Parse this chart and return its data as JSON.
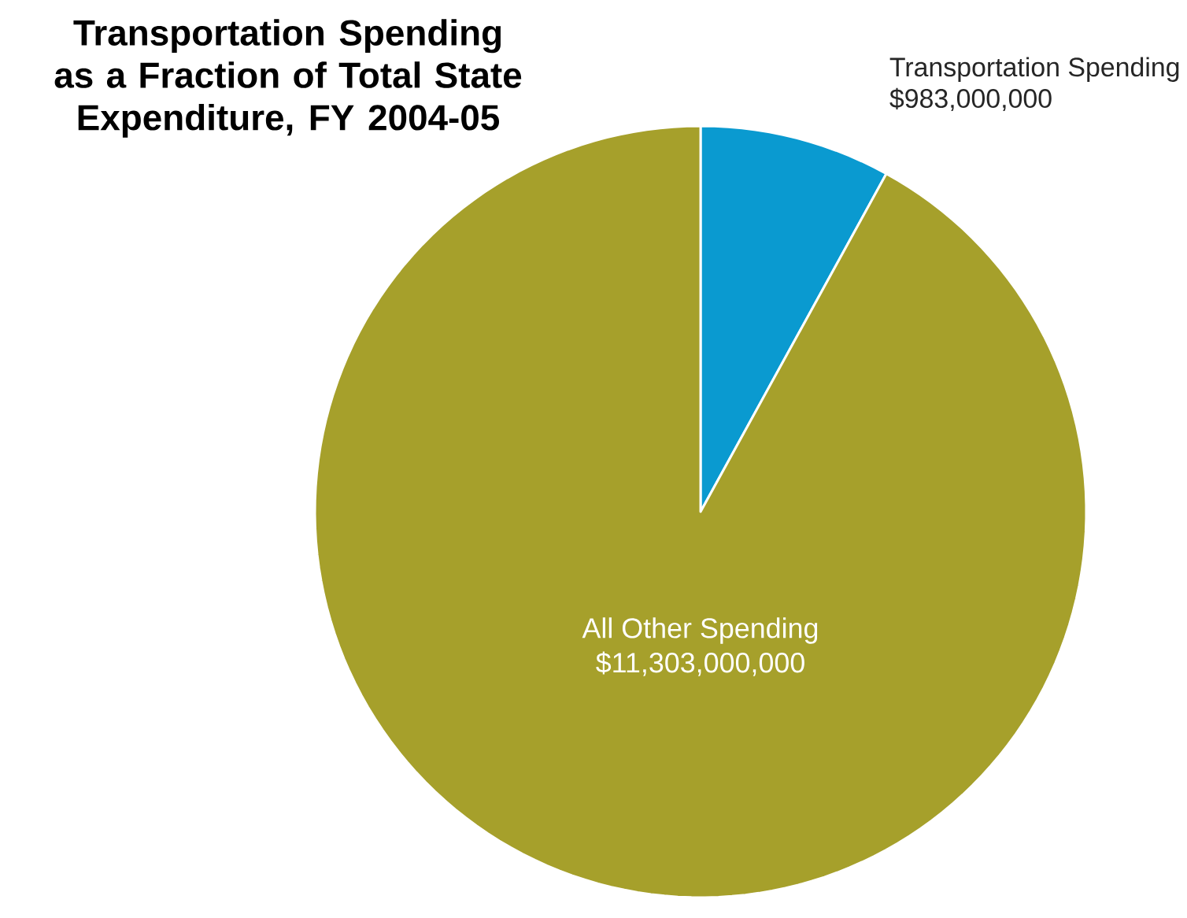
{
  "chart_data": {
    "type": "pie",
    "title": "Transportation Spending as a Fraction of Total State Expenditure, FY 2004-05",
    "categories": [
      "Transportation Spending",
      "All Other Spending"
    ],
    "values": [
      983000000,
      11303000000
    ],
    "value_labels": [
      "$983,000,000",
      "$11,303,000,000"
    ],
    "colors": [
      "#0a9ad0",
      "#a6a02b"
    ]
  }
}
